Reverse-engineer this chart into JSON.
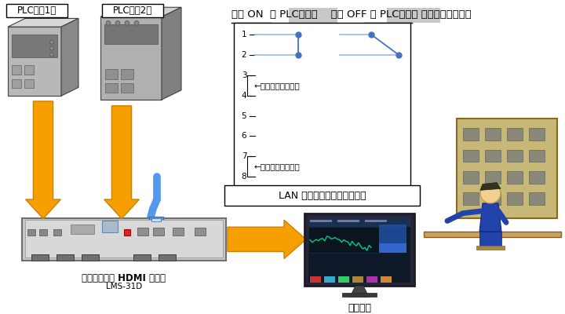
{
  "plc1_label": "PLCの（1）",
  "plc2_label": "PLCの（2）",
  "device_label": "３入力１出力 HDMI 切替器",
  "device_model": "LMS-31D",
  "monitor_label": "監視画面",
  "lan_label": "LAN コネクタ　ピンアサイン",
  "short1_label": "←ショートします。",
  "short2_label": "←ショートします。",
  "pin_numbers": [
    "1",
    "2",
    "3",
    "4",
    "5",
    "6",
    "7",
    "8"
  ],
  "bg_color": "#ffffff",
  "arrow_color": "#f5a000",
  "arrow_edge": "#cc8000",
  "line_color_dark": "#4472c4",
  "line_color_light": "#9dc3e6",
  "highlight_gray": "#c8c8c8",
  "box_edge": "#000000"
}
